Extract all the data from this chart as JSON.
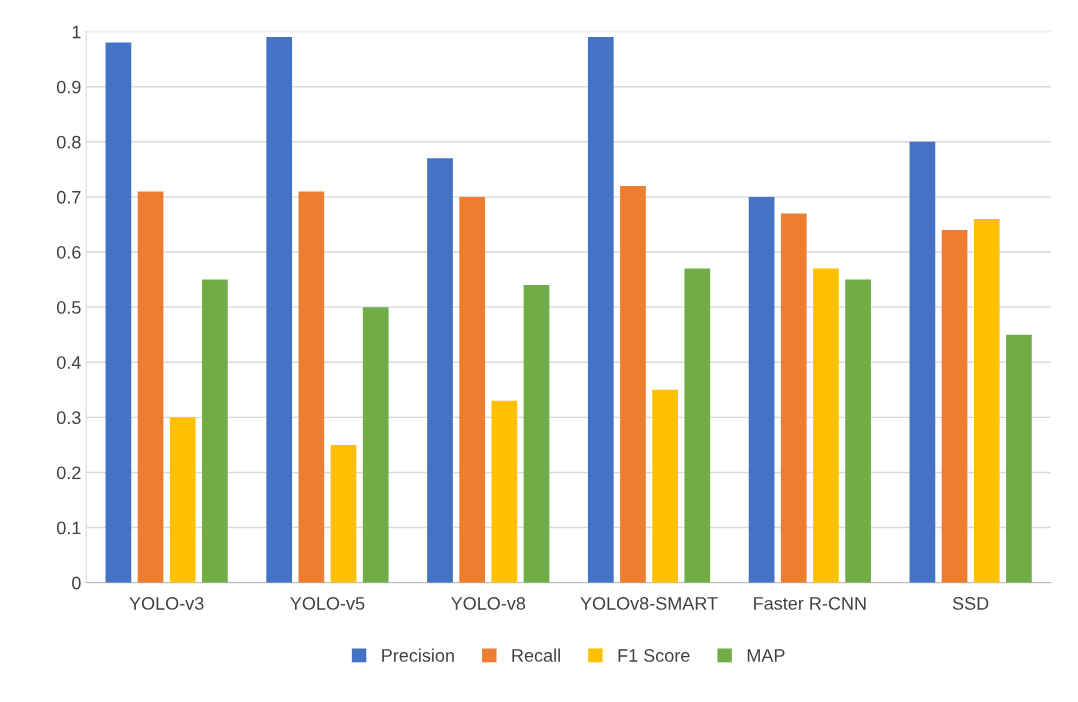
{
  "chart_data": {
    "type": "bar",
    "categories": [
      "YOLO-v3",
      "YOLO-v5",
      "YOLO-v8",
      "YOLOv8-SMART",
      "Faster R-CNN",
      "SSD"
    ],
    "series": [
      {
        "name": "Precision",
        "color": "#4472c4",
        "values": [
          0.98,
          0.99,
          0.77,
          0.99,
          0.7,
          0.8
        ]
      },
      {
        "name": "Recall",
        "color": "#ed7d31",
        "values": [
          0.71,
          0.71,
          0.7,
          0.72,
          0.67,
          0.64
        ]
      },
      {
        "name": "F1 Score",
        "color": "#ffc000",
        "values": [
          0.3,
          0.25,
          0.33,
          0.35,
          0.57,
          0.66
        ]
      },
      {
        "name": "MAP",
        "color": "#70ad47",
        "values": [
          0.55,
          0.5,
          0.54,
          0.57,
          0.55,
          0.45
        ]
      }
    ],
    "ylim": [
      0,
      1
    ],
    "yticks": [
      0,
      0.1,
      0.2,
      0.3,
      0.4,
      0.5,
      0.6,
      0.7,
      0.8,
      0.9,
      1
    ],
    "grid": "y",
    "legend": "bottom"
  }
}
